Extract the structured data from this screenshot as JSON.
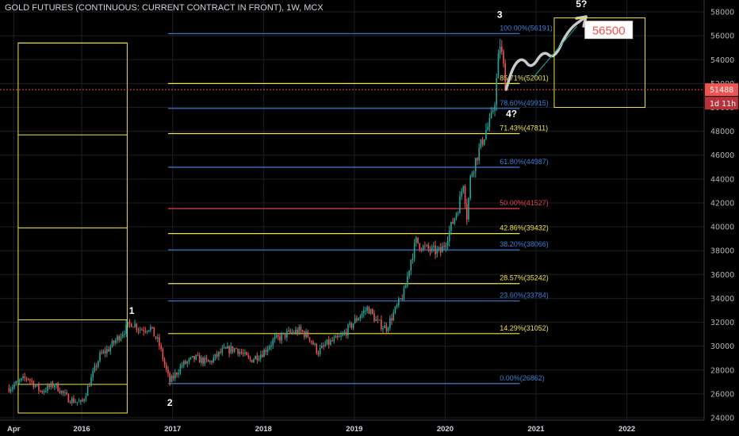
{
  "chart_data": {
    "type": "candlestick",
    "title": "GOLD FUTURES (CONTINUOUS: CURRENT CONTRACT IN FRONT), 1W, MCX",
    "y_axis": {
      "ticks": [
        24000,
        26000,
        28000,
        30000,
        32000,
        34000,
        36000,
        38000,
        40000,
        42000,
        44000,
        46000,
        48000,
        50000,
        52000,
        54000,
        56000,
        58000
      ],
      "tick_labels": [
        "24000",
        "26000",
        "28000",
        "30000",
        "32000",
        "34000",
        "36000",
        "38000",
        "40000",
        "42000",
        "44000",
        "46000",
        "48000",
        "50000",
        "52000",
        "54000",
        "56000",
        "58000"
      ],
      "range": [
        23800,
        59000
      ]
    },
    "x_axis": {
      "ticks": [
        2015.25,
        2016.0,
        2017.0,
        2018.0,
        2019.0,
        2020.0,
        2021.0,
        2022.0
      ],
      "tick_labels": [
        "Apr",
        "2016",
        "2017",
        "2018",
        "2019",
        "2020",
        "2021",
        "2022"
      ],
      "range": [
        2015.1,
        2022.85
      ]
    },
    "price_path": [
      [
        2015.2,
        26500
      ],
      [
        2015.4,
        27400
      ],
      [
        2015.55,
        26200
      ],
      [
        2015.7,
        26800
      ],
      [
        2015.85,
        25600
      ],
      [
        2016.0,
        25200
      ],
      [
        2016.1,
        27200
      ],
      [
        2016.2,
        29200
      ],
      [
        2016.3,
        29800
      ],
      [
        2016.45,
        31200
      ],
      [
        2016.55,
        32000
      ],
      [
        2016.65,
        31400
      ],
      [
        2016.75,
        31600
      ],
      [
        2016.85,
        30200
      ],
      [
        2016.92,
        28200
      ],
      [
        2016.97,
        27000
      ],
      [
        2017.1,
        28400
      ],
      [
        2017.25,
        29000
      ],
      [
        2017.4,
        28600
      ],
      [
        2017.55,
        29600
      ],
      [
        2017.7,
        29800
      ],
      [
        2017.85,
        28800
      ],
      [
        2018.0,
        29500
      ],
      [
        2018.1,
        30400
      ],
      [
        2018.25,
        31000
      ],
      [
        2018.4,
        31300
      ],
      [
        2018.5,
        30800
      ],
      [
        2018.6,
        29500
      ],
      [
        2018.7,
        30200
      ],
      [
        2018.85,
        30700
      ],
      [
        2018.95,
        31600
      ],
      [
        2019.05,
        32500
      ],
      [
        2019.15,
        33200
      ],
      [
        2019.25,
        32000
      ],
      [
        2019.35,
        31500
      ],
      [
        2019.45,
        33000
      ],
      [
        2019.55,
        34500
      ],
      [
        2019.62,
        37200
      ],
      [
        2019.68,
        38800
      ],
      [
        2019.75,
        38300
      ],
      [
        2019.85,
        38000
      ],
      [
        2019.95,
        37900
      ],
      [
        2020.0,
        38700
      ],
      [
        2020.08,
        40300
      ],
      [
        2020.15,
        41800
      ],
      [
        2020.2,
        43800
      ],
      [
        2020.24,
        40800
      ],
      [
        2020.28,
        44300
      ],
      [
        2020.33,
        45500
      ],
      [
        2020.4,
        47000
      ],
      [
        2020.45,
        48100
      ],
      [
        2020.5,
        48800
      ],
      [
        2020.55,
        50800
      ],
      [
        2020.6,
        55500
      ],
      [
        2020.64,
        53500
      ],
      [
        2020.67,
        51500
      ]
    ],
    "fibonacci_levels": [
      {
        "label": "100.00%(56191)",
        "value": 56191,
        "color": "#3d7fd6"
      },
      {
        "label": "85.71%(52001)",
        "value": 52001,
        "color": "#f0e24b"
      },
      {
        "label": "78.60%(49915)",
        "value": 49915,
        "color": "#3d7fd6"
      },
      {
        "label": "71.43%(47811)",
        "value": 47811,
        "color": "#f0e24b"
      },
      {
        "label": "61.80%(44987)",
        "value": 44987,
        "color": "#3d7fd6"
      },
      {
        "label": "50.00%(41527)",
        "value": 41527,
        "color": "#e0454b"
      },
      {
        "label": "42.86%(39432)",
        "value": 39432,
        "color": "#f0e24b"
      },
      {
        "label": "38.20%(38066)",
        "value": 38066,
        "color": "#3d7fd6"
      },
      {
        "label": "28.57%(35242)",
        "value": 35242,
        "color": "#f0e24b"
      },
      {
        "label": "23.60%(33784)",
        "value": 33784,
        "color": "#3d7fd6"
      },
      {
        "label": "14.29%(31052)",
        "value": 31052,
        "color": "#f0e24b"
      },
      {
        "label": "0.00%(26862)",
        "value": 26862,
        "color": "#3d7fd6"
      }
    ],
    "fib_x_range": [
      2016.95,
      2020.82
    ],
    "wave_labels": [
      {
        "text": "1",
        "x": 2016.55,
        "y": 32700
      },
      {
        "text": "2",
        "x": 2016.97,
        "y": 25000
      },
      {
        "text": "3",
        "x": 2020.6,
        "y": 57500
      },
      {
        "text": "4?",
        "x": 2020.73,
        "y": 49200
      },
      {
        "text": "5?",
        "x": 2021.5,
        "y": 58400
      }
    ],
    "target_label": {
      "text": "56500",
      "x": 2021.8,
      "y": 56500
    },
    "current_price": {
      "label": "51488",
      "value": 51488,
      "countdown": "1d 11h"
    },
    "left_box": {
      "x0": 2015.3,
      "x1": 2016.5,
      "levels": [
        24400,
        26800,
        32200,
        39900,
        47700,
        55400
      ]
    },
    "right_box": {
      "x0": 2021.2,
      "x1": 2022.2,
      "y0": 50000,
      "y1": 57500
    },
    "forecast_path": [
      [
        2020.67,
        51500
      ],
      [
        2020.75,
        53500
      ],
      [
        2020.85,
        54200
      ],
      [
        2020.95,
        53200
      ],
      [
        2021.08,
        54800
      ],
      [
        2021.2,
        54000
      ],
      [
        2021.35,
        56500
      ],
      [
        2021.55,
        57600
      ]
    ],
    "colors": {
      "up": "#26a69a",
      "down": "#ef5350",
      "grid": "#1c1f26",
      "axis_text": "#b2b5be",
      "price_tag": "#ef5350"
    }
  }
}
